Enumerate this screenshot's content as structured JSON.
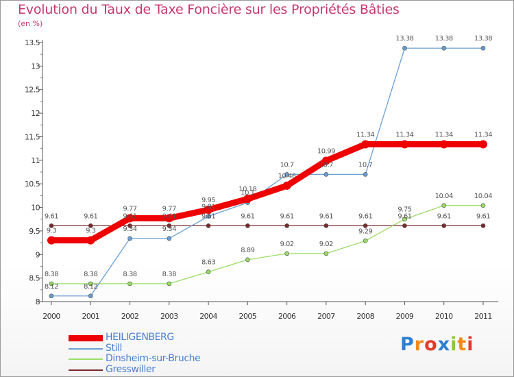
{
  "header": {
    "title": "Evolution du Taux de Taxe Foncière sur les Propriétés Bâties",
    "unit": "(en %)"
  },
  "logo": {
    "text": "Proxiti",
    "letters": [
      {
        "ch": "P",
        "color": "#2b7fd4"
      },
      {
        "ch": "r",
        "color": "#f28a1b"
      },
      {
        "ch": "o",
        "color": "#e53a2c"
      },
      {
        "ch": "x",
        "color": "#2b7fd4"
      },
      {
        "ch": "i",
        "color": "#8cc63f"
      },
      {
        "ch": "t",
        "color": "#f28a1b"
      },
      {
        "ch": "i",
        "color": "#e53a2c"
      }
    ]
  },
  "chart_data": {
    "type": "line",
    "x": [
      "2000",
      "2001",
      "2002",
      "2003",
      "2004",
      "2005",
      "2006",
      "2007",
      "2008",
      "2009",
      "2010",
      "2011"
    ],
    "ylim": [
      8,
      13.5
    ],
    "yticks": [
      "8",
      "8.5",
      "9",
      "9.5",
      "10",
      "10.5",
      "11",
      "11.5",
      "12",
      "12.5",
      "13",
      "13.5"
    ],
    "grid": false,
    "legend_position": "bottom-left",
    "series": [
      {
        "name": "HEILIGENBERG",
        "color": "#ee0000",
        "width": 9,
        "values": [
          9.3,
          9.3,
          9.77,
          9.77,
          9.95,
          10.18,
          10.46,
          10.99,
          11.34,
          11.34,
          11.34,
          11.34
        ],
        "labels": [
          "9.3",
          "9.3",
          "9.77",
          "9.77",
          "9.95",
          "10.18",
          "10.46",
          "10.99",
          "11.34",
          "11.34",
          "11.34",
          "11.34"
        ]
      },
      {
        "name": "Still",
        "color": "#6a9fd4",
        "width": 1.3,
        "values": [
          8.12,
          8.12,
          9.34,
          9.34,
          9.81,
          10.1,
          10.7,
          10.7,
          10.7,
          13.38,
          13.38,
          13.38
        ],
        "labels": [
          "8.12",
          "8.12",
          "9.34",
          "9.34",
          "9.81",
          "10.1",
          "10.7",
          "10.7",
          "10.7",
          "13.38",
          "13.38",
          "13.38"
        ]
      },
      {
        "name": "Dinsheim-sur-Bruche",
        "color": "#99dd66",
        "width": 1.3,
        "values": [
          8.38,
          8.38,
          8.38,
          8.38,
          8.63,
          8.89,
          9.02,
          9.02,
          9.29,
          9.75,
          10.04,
          10.04
        ],
        "labels": [
          "8.38",
          "8.38",
          "8.38",
          "8.38",
          "8.63",
          "8.89",
          "9.02",
          "9.02",
          "9.29",
          "9.75",
          "10.04",
          "10.04"
        ]
      },
      {
        "name": "Gresswiller",
        "color": "#7a2a2a",
        "width": 1.3,
        "values": [
          9.61,
          9.61,
          9.61,
          9.61,
          9.61,
          9.61,
          9.61,
          9.61,
          9.61,
          9.61,
          9.61,
          9.61
        ],
        "labels": [
          "9.61",
          "9.61",
          "9.61",
          "9.61",
          "9.61",
          "9.61",
          "9.61",
          "9.61",
          "9.61",
          "9.61",
          "9.61",
          "9.61"
        ]
      }
    ]
  }
}
